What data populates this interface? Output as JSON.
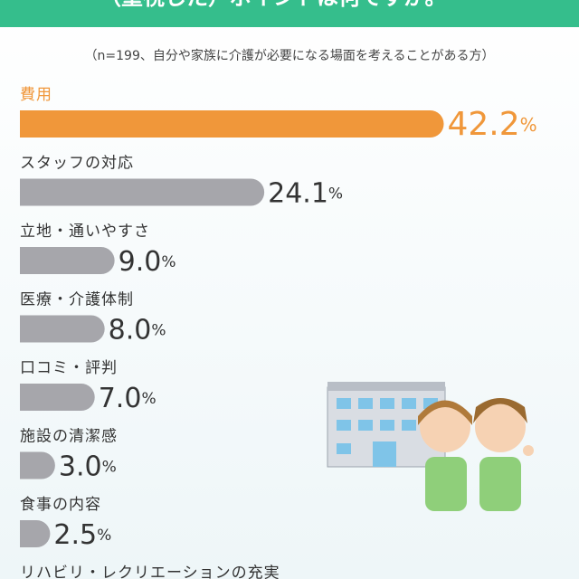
{
  "chart_data": {
    "type": "bar",
    "orientation": "horizontal",
    "title": "（重視した）ポイントは何ですか。",
    "subtitle": "（n=199、自分や家族に介護が必要になる場面を考えることがある方）",
    "categories": [
      "費用",
      "スタッフの対応",
      "立地・通いやすさ",
      "医療・介護体制",
      "口コミ・評判",
      "施設の清潔感",
      "食事の内容",
      "リハビリ・レクリエーションの充実"
    ],
    "values": [
      42.2,
      24.1,
      9.0,
      8.0,
      7.0,
      3.0,
      2.5,
      null
    ],
    "value_labels": [
      "42.2%",
      "24.1%",
      "9.0%",
      "8.0%",
      "7.0%",
      "3.0%",
      "2.5%",
      null
    ],
    "colors": [
      "#f0973a",
      "#a6a6ab",
      "#a6a6ab",
      "#a6a6ab",
      "#a6a6ab",
      "#a6a6ab",
      "#a6a6ab",
      "#a6a6ab"
    ],
    "label_colors": [
      "#f0973a",
      "#333333",
      "#333333",
      "#333333",
      "#333333",
      "#333333",
      "#333333",
      "#333333"
    ]
  }
}
